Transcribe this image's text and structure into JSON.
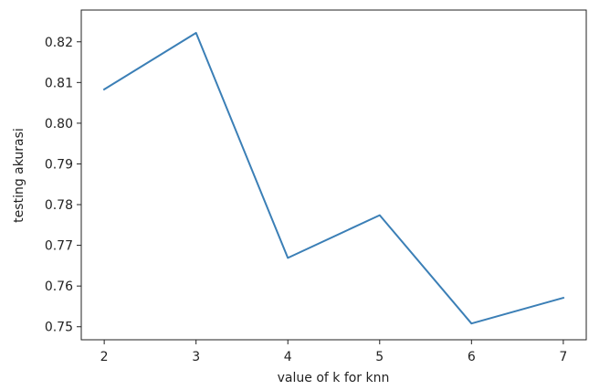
{
  "chart_data": {
    "type": "line",
    "title": "",
    "xlabel": "value of k for knn",
    "ylabel": "testing akurasi",
    "x": [
      2,
      3,
      4,
      5,
      6,
      7
    ],
    "series": [
      {
        "values": [
          0.8083,
          0.8222,
          0.7669,
          0.7774,
          0.7508,
          0.7571
        ],
        "color": "#3b7fb6"
      }
    ],
    "xlim": [
      1.75,
      7.25
    ],
    "ylim": [
      0.7468,
      0.8278
    ],
    "xticks": [
      2,
      3,
      4,
      5,
      6,
      7
    ],
    "xtick_labels": [
      "2",
      "3",
      "4",
      "5",
      "6",
      "7"
    ],
    "yticks": [
      0.75,
      0.76,
      0.77,
      0.78,
      0.79,
      0.8,
      0.81,
      0.82
    ],
    "ytick_labels": [
      "0.75",
      "0.76",
      "0.77",
      "0.78",
      "0.79",
      "0.80",
      "0.81",
      "0.82"
    ],
    "grid": false,
    "legend": false
  }
}
